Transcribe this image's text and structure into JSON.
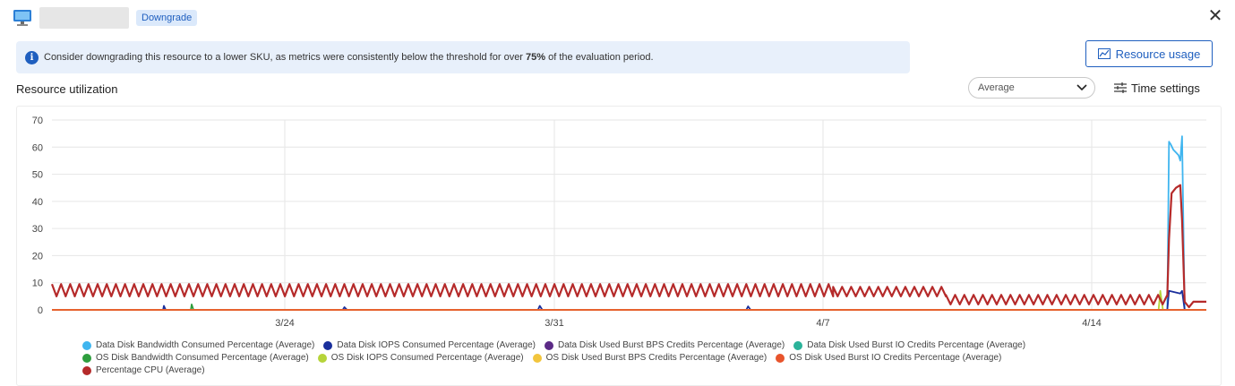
{
  "header": {
    "badge": "Downgrade",
    "icon": "virtual-machine-icon",
    "close_icon": "close-icon"
  },
  "banner": {
    "icon": "info-icon",
    "text_before": "Consider downgrading this resource to a lower SKU, as metrics were consistently below the threshold for over ",
    "text_bold": "75%",
    "text_after": " of the evaluation period."
  },
  "resource_usage_button": {
    "label": "Resource usage",
    "icon": "chart-icon"
  },
  "section_title": "Resource utilization",
  "aggregation": {
    "selected": "Average",
    "icon": "chevron-down-icon"
  },
  "time_settings": {
    "label": "Time settings",
    "icon": "settings-sliders-icon"
  },
  "colors": {
    "accent": "#1f5fbf",
    "grid": "#e6e6e6"
  },
  "chart_data": {
    "type": "line",
    "x_tick_labels": [
      "3/24",
      "3/31",
      "4/7",
      "4/14"
    ],
    "y_tick_labels": [
      "0",
      "10",
      "20",
      "30",
      "40",
      "50",
      "60",
      "70"
    ],
    "ylim": [
      0,
      70
    ],
    "grid": true,
    "legend_position": "bottom",
    "series": [
      {
        "name": "Data Disk Bandwidth Consumed Percentage (Average)",
        "color": "#3fb5ef",
        "points": [
          [
            1,
            0
          ],
          [
            1.285,
            0
          ],
          [
            1.287,
            62
          ],
          [
            1.289,
            61
          ],
          [
            1.292,
            59
          ],
          [
            1.295,
            58
          ],
          [
            1.298,
            57
          ],
          [
            1.3,
            55
          ],
          [
            1.302,
            64
          ],
          [
            1.305,
            0
          ],
          [
            1.33,
            0
          ]
        ]
      },
      {
        "name": "Data Disk IOPS Consumed Percentage (Average)",
        "color": "#1a2f9c",
        "points": [
          [
            0,
            0
          ],
          [
            0.128,
            0
          ],
          [
            0.129,
            1.5
          ],
          [
            0.131,
            0
          ],
          [
            0.335,
            0
          ],
          [
            0.337,
            1
          ],
          [
            0.34,
            0
          ],
          [
            0.56,
            0
          ],
          [
            0.562,
            1.5
          ],
          [
            0.565,
            0
          ],
          [
            0.8,
            0
          ],
          [
            0.802,
            1.3
          ],
          [
            0.805,
            0
          ],
          [
            1.285,
            0
          ],
          [
            1.287,
            7
          ],
          [
            1.3,
            6
          ],
          [
            1.302,
            7
          ],
          [
            1.305,
            0
          ],
          [
            1.33,
            0
          ]
        ]
      },
      {
        "name": "Data Disk Used Burst BPS Credits Percentage (Average)",
        "color": "#5b2a86",
        "points": [
          [
            0,
            0
          ],
          [
            1.33,
            0
          ]
        ]
      },
      {
        "name": "Data Disk Used Burst IO Credits Percentage (Average)",
        "color": "#2bb39a",
        "points": [
          [
            0,
            0
          ],
          [
            1.33,
            0
          ]
        ]
      },
      {
        "name": "OS Disk Bandwidth Consumed Percentage (Average)",
        "color": "#2e9e3e",
        "points": [
          [
            0,
            0
          ],
          [
            0.16,
            0
          ],
          [
            0.161,
            2
          ],
          [
            0.163,
            0
          ],
          [
            1.33,
            0
          ]
        ]
      },
      {
        "name": "OS Disk IOPS Consumed Percentage (Average)",
        "color": "#b6d43a",
        "points": [
          [
            0,
            0
          ],
          [
            1.275,
            0
          ],
          [
            1.277,
            7
          ],
          [
            1.28,
            0
          ],
          [
            1.33,
            0
          ]
        ]
      },
      {
        "name": "OS Disk Used Burst BPS Credits Percentage (Average)",
        "color": "#f2c53d",
        "points": [
          [
            0,
            0
          ],
          [
            1.33,
            0
          ]
        ]
      },
      {
        "name": "OS Disk Used Burst IO Credits Percentage (Average)",
        "color": "#e8542c",
        "points": [
          [
            0,
            0
          ],
          [
            1.33,
            0
          ]
        ]
      },
      {
        "name": "Percentage CPU (Average)",
        "color": "#b52a2a",
        "base_segments": [
          {
            "from": 0.0,
            "to": 0.9,
            "low": 5,
            "high": 9.5
          },
          {
            "from": 0.9,
            "to": 1.03,
            "low": 5,
            "high": 8.5
          },
          {
            "from": 1.03,
            "to": 1.285,
            "low": 2,
            "high": 5.5
          }
        ],
        "spike": [
          [
            1.285,
            5
          ],
          [
            1.287,
            26
          ],
          [
            1.29,
            43
          ],
          [
            1.295,
            45
          ],
          [
            1.3,
            46
          ],
          [
            1.302,
            33
          ],
          [
            1.305,
            3
          ],
          [
            1.31,
            1
          ],
          [
            1.315,
            3
          ],
          [
            1.33,
            3
          ]
        ]
      }
    ]
  }
}
